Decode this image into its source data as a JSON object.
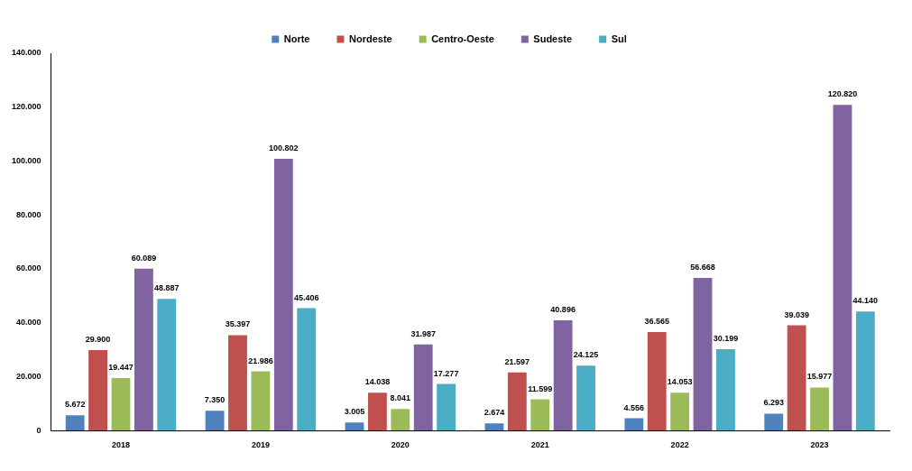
{
  "chart_data": {
    "type": "bar",
    "categories": [
      "2018",
      "2019",
      "2020",
      "2021",
      "2022",
      "2023"
    ],
    "series": [
      {
        "name": "Norte",
        "color": "#4f81bd",
        "values": [
          5672,
          7350,
          3005,
          2674,
          4556,
          6293
        ],
        "value_labels": [
          "5.672",
          "7.350",
          "3.005",
          "2.674",
          "4.556",
          "6.293"
        ]
      },
      {
        "name": "Nordeste",
        "color": "#c0504d",
        "values": [
          29900,
          35397,
          14038,
          21597,
          36565,
          39039
        ],
        "value_labels": [
          "29.900",
          "35.397",
          "14.038",
          "21.597",
          "36.565",
          "39.039"
        ]
      },
      {
        "name": "Centro-Oeste",
        "color": "#9bbb59",
        "values": [
          19447,
          21986,
          8041,
          11599,
          14053,
          15977
        ],
        "value_labels": [
          "19.447",
          "21.986",
          "8.041",
          "11.599",
          "14.053",
          "15.977"
        ]
      },
      {
        "name": "Sudeste",
        "color": "#8064a2",
        "values": [
          60089,
          100802,
          31987,
          40896,
          56668,
          120820
        ],
        "value_labels": [
          "60.089",
          "100.802",
          "31.987",
          "40.896",
          "56.668",
          "120.820"
        ]
      },
      {
        "name": "Sul",
        "color": "#4bacc6",
        "values": [
          48887,
          45406,
          17277,
          24125,
          30199,
          44140
        ],
        "value_labels": [
          "48.887",
          "45.406",
          "17.277",
          "24.125",
          "30.199",
          "44.140"
        ]
      }
    ],
    "ylim": [
      0,
      140000
    ],
    "yticks": [
      0,
      {
        "value": 20000,
        "label": "20.000"
      },
      {
        "value": 40000,
        "label": "40.000"
      },
      {
        "value": 60000,
        "label": "60.000"
      },
      {
        "value": 80000,
        "label": "80.000"
      },
      {
        "value": 100000,
        "label": "100.000"
      },
      {
        "value": 120000,
        "label": "120.000"
      },
      {
        "value": 140000,
        "label": "140.000"
      }
    ],
    "grid": false,
    "legend": "top",
    "data_labels": true
  }
}
